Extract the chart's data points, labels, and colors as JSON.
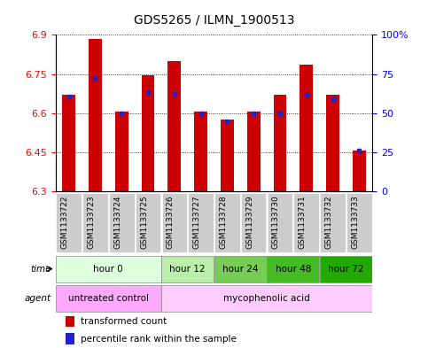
{
  "title": "GDS5265 / ILMN_1900513",
  "samples": [
    "GSM1133722",
    "GSM1133723",
    "GSM1133724",
    "GSM1133725",
    "GSM1133726",
    "GSM1133727",
    "GSM1133728",
    "GSM1133729",
    "GSM1133730",
    "GSM1133731",
    "GSM1133732",
    "GSM1133733"
  ],
  "bar_heights": [
    6.67,
    6.885,
    6.605,
    6.745,
    6.8,
    6.605,
    6.575,
    6.605,
    6.67,
    6.785,
    6.67,
    6.455
  ],
  "percentile_values": [
    6.665,
    6.735,
    6.6,
    6.68,
    6.675,
    6.6,
    6.57,
    6.6,
    6.6,
    6.67,
    6.655,
    6.455
  ],
  "bar_color": "#cc0000",
  "dot_color": "#2222cc",
  "ymin": 6.3,
  "ymax": 6.9,
  "yticks": [
    6.3,
    6.45,
    6.6,
    6.75,
    6.9
  ],
  "ytick_labels": [
    "6.3",
    "6.45",
    "6.6",
    "6.75",
    "6.9"
  ],
  "right_yticks": [
    0,
    25,
    50,
    75,
    100
  ],
  "right_ytick_labels": [
    "0",
    "25",
    "50",
    "75",
    "100%"
  ],
  "time_groups": [
    {
      "label": "hour 0",
      "start": 0,
      "end": 3,
      "color": "#ddffdd"
    },
    {
      "label": "hour 12",
      "start": 4,
      "end": 5,
      "color": "#bbeeaa"
    },
    {
      "label": "hour 24",
      "start": 6,
      "end": 7,
      "color": "#77cc55"
    },
    {
      "label": "hour 48",
      "start": 8,
      "end": 9,
      "color": "#44bb22"
    },
    {
      "label": "hour 72",
      "start": 10,
      "end": 11,
      "color": "#22aa00"
    }
  ],
  "agent_groups": [
    {
      "label": "untreated control",
      "start": 0,
      "end": 3,
      "color": "#ffaaff"
    },
    {
      "label": "mycophenolic acid",
      "start": 4,
      "end": 11,
      "color": "#ffccff"
    }
  ],
  "label_fontsize": 7.5,
  "tick_fontsize": 8,
  "title_fontsize": 10,
  "sample_fontsize": 6.5
}
